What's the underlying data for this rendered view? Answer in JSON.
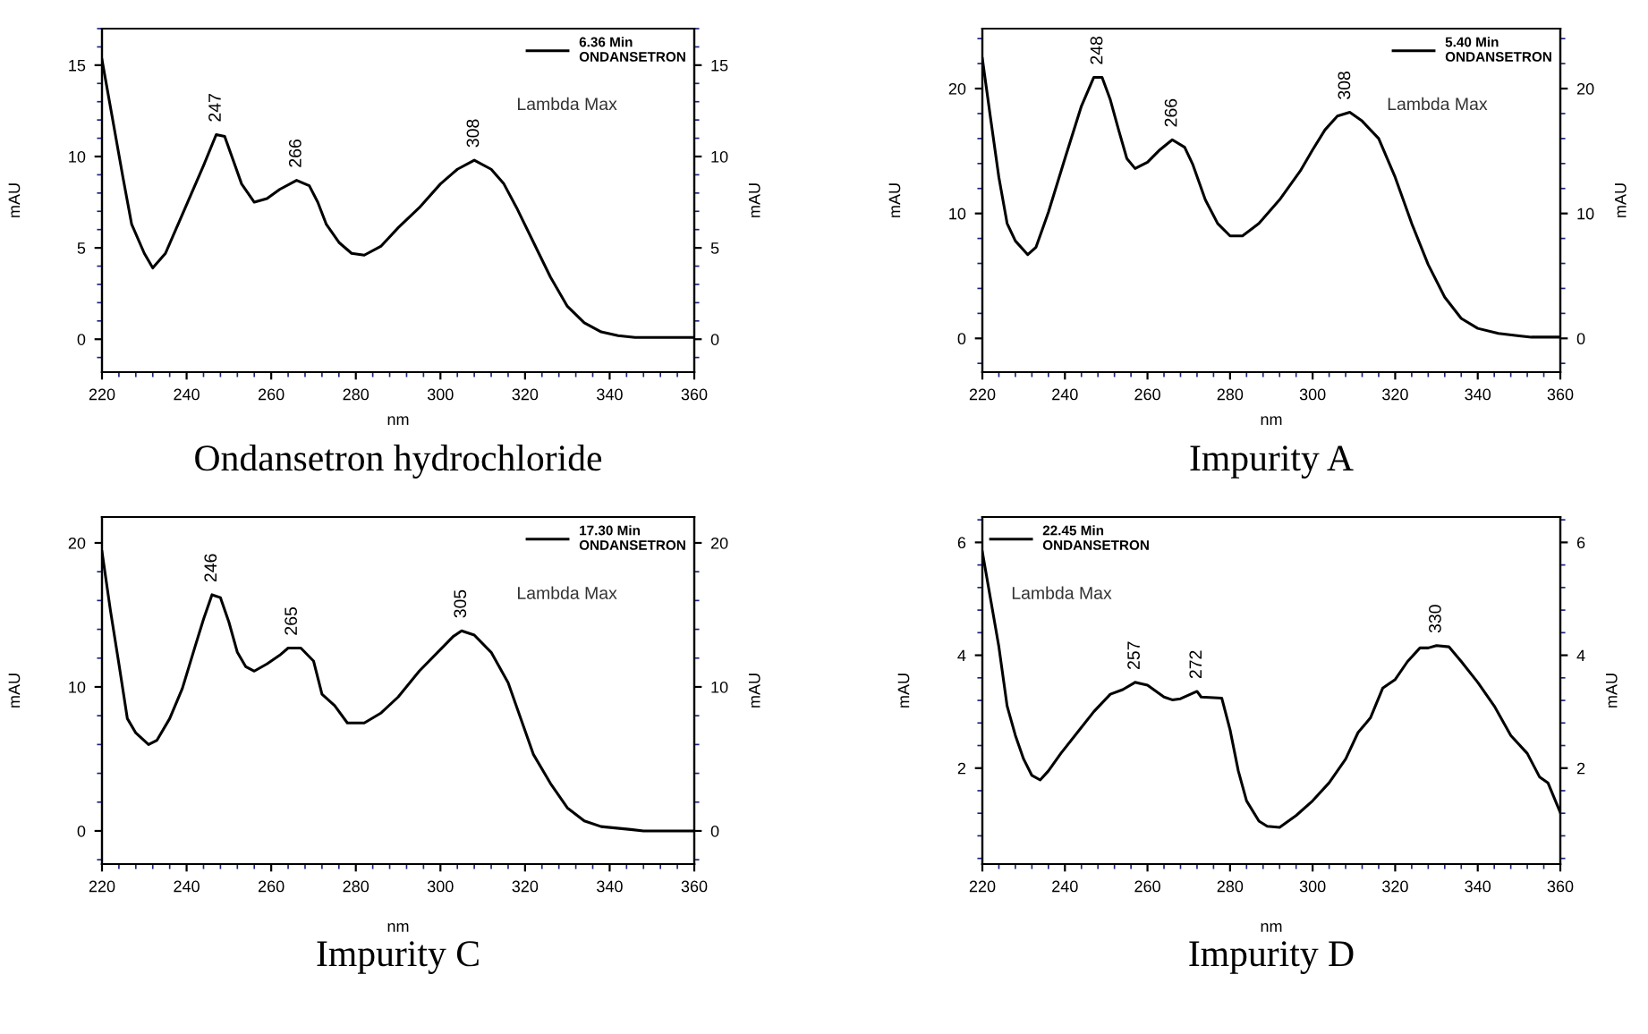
{
  "chart_data": [
    {
      "type": "line",
      "title": "Ondansetron hydrochloride",
      "xlabel": "nm",
      "ylabel": "mAU",
      "y2label": "mAU",
      "xlim": [
        220,
        360
      ],
      "xticks": [
        220,
        240,
        260,
        280,
        300,
        320,
        340,
        360
      ],
      "ylim": [
        -1.8,
        17
      ],
      "yticks": [
        0,
        5,
        10,
        15
      ],
      "y2lim": [
        -1.8,
        17
      ],
      "y2ticks": [
        0,
        5,
        10,
        15
      ],
      "legend": "top right",
      "grid": false,
      "x": [
        220,
        222,
        225,
        227,
        230,
        232,
        235,
        238,
        241,
        244,
        247,
        249,
        251,
        253,
        256,
        259,
        262,
        266,
        269,
        271,
        273,
        276,
        279,
        282,
        286,
        290,
        295,
        300,
        304,
        308,
        312,
        315,
        318,
        322,
        326,
        330,
        334,
        338,
        342,
        346,
        350,
        360
      ],
      "series": [
        {
          "name": "6.36 Min\nONDANSETRON",
          "color": "#000000",
          "values": [
            15.3,
            12.7,
            8.8,
            6.3,
            4.7,
            3.9,
            4.7,
            6.3,
            7.9,
            9.5,
            11.2,
            11.1,
            9.8,
            8.5,
            7.5,
            7.7,
            8.2,
            8.7,
            8.4,
            7.5,
            6.3,
            5.3,
            4.7,
            4.6,
            5.1,
            6.1,
            7.2,
            8.5,
            9.3,
            9.8,
            9.3,
            8.5,
            7.2,
            5.3,
            3.4,
            1.8,
            0.9,
            0.4,
            0.2,
            0.1,
            0.1,
            0.1
          ]
        }
      ],
      "annotations": [
        "Lambda Max",
        {
          "text": "247",
          "x": 247,
          "y": 11.2
        },
        {
          "text": "266",
          "x": 266,
          "y": 8.7
        },
        {
          "text": "308",
          "x": 308,
          "y": 9.8
        }
      ]
    },
    {
      "type": "line",
      "title": "Impurity A",
      "xlabel": "nm",
      "ylabel": "mAU",
      "y2label": "mAU",
      "xlim": [
        220,
        360
      ],
      "xticks": [
        220,
        240,
        260,
        280,
        300,
        320,
        340,
        360
      ],
      "ylim": [
        -2.7,
        24.8
      ],
      "yticks": [
        0,
        10,
        20
      ],
      "y2lim": [
        -2.7,
        24.8
      ],
      "y2ticks": [
        0,
        10,
        20
      ],
      "legend": "top right",
      "grid": false,
      "x": [
        220,
        222,
        224,
        226,
        228,
        231,
        233,
        236,
        240,
        244,
        247,
        249,
        251,
        253,
        255,
        257,
        260,
        263,
        266,
        269,
        271,
        274,
        277,
        280,
        283,
        287,
        292,
        297,
        300,
        303,
        306,
        309,
        312,
        316,
        320,
        324,
        328,
        332,
        336,
        340,
        345,
        350,
        353,
        360
      ],
      "series": [
        {
          "name": "5.40 Min\nONDANSETRON",
          "color": "#000000",
          "values": [
            22.4,
            17.6,
            12.9,
            9.2,
            7.8,
            6.7,
            7.3,
            10.1,
            14.4,
            18.6,
            20.9,
            20.9,
            19.1,
            16.7,
            14.4,
            13.6,
            14.1,
            15.1,
            15.9,
            15.3,
            13.9,
            11.1,
            9.2,
            8.2,
            8.2,
            9.2,
            11.1,
            13.4,
            15.1,
            16.7,
            17.8,
            18.1,
            17.4,
            16.0,
            12.9,
            9.2,
            5.9,
            3.3,
            1.6,
            0.8,
            0.4,
            0.2,
            0.1,
            0.1
          ]
        }
      ],
      "annotations": [
        "Lambda Max",
        {
          "text": "248",
          "x": 248,
          "y": 20.9
        },
        {
          "text": "266",
          "x": 266,
          "y": 15.9
        },
        {
          "text": "308",
          "x": 308,
          "y": 18.1
        }
      ]
    },
    {
      "type": "line",
      "title": "Impurity C",
      "xlabel": "nm",
      "ylabel": "mAU",
      "y2label": "mAU",
      "xlim": [
        220,
        360
      ],
      "xticks": [
        220,
        240,
        260,
        280,
        300,
        320,
        340,
        360
      ],
      "ylim": [
        -2.3,
        21.8
      ],
      "yticks": [
        0,
        10,
        20
      ],
      "y2lim": [
        -2.3,
        21.8
      ],
      "y2ticks": [
        0,
        10,
        20
      ],
      "legend": "top right",
      "grid": false,
      "x": [
        220,
        222,
        224,
        226,
        228,
        231,
        233,
        236,
        239,
        242,
        244,
        246,
        248,
        250,
        252,
        254,
        256,
        259,
        262,
        264,
        267,
        270,
        272,
        275,
        278,
        282,
        286,
        290,
        295,
        300,
        303,
        305,
        308,
        312,
        316,
        319,
        322,
        326,
        330,
        334,
        338,
        345,
        348,
        360
      ],
      "series": [
        {
          "name": "17.30 Min\nONDANSETRON",
          "color": "#000000",
          "values": [
            19.4,
            15.3,
            11.6,
            7.8,
            6.8,
            6.0,
            6.3,
            7.8,
            9.9,
            12.8,
            14.7,
            16.4,
            16.2,
            14.5,
            12.4,
            11.4,
            11.1,
            11.6,
            12.2,
            12.7,
            12.7,
            11.8,
            9.5,
            8.7,
            7.5,
            7.5,
            8.2,
            9.3,
            11.1,
            12.6,
            13.5,
            13.9,
            13.6,
            12.4,
            10.3,
            7.8,
            5.3,
            3.3,
            1.6,
            0.7,
            0.3,
            0.1,
            0.0,
            0.0
          ]
        }
      ],
      "annotations": [
        "Lambda Max",
        {
          "text": "246",
          "x": 246,
          "y": 16.4
        },
        {
          "text": "265",
          "x": 265,
          "y": 12.7
        },
        {
          "text": "305",
          "x": 305,
          "y": 13.9
        }
      ]
    },
    {
      "type": "line",
      "title": "Impurity D",
      "xlabel": "nm",
      "ylabel": "mAU",
      "y2label": "mAU",
      "xlim": [
        220,
        360
      ],
      "xticks": [
        220,
        240,
        260,
        280,
        300,
        320,
        340,
        360
      ],
      "ylim": [
        0.3,
        6.45
      ],
      "yticks": [
        2,
        4,
        6
      ],
      "y2lim": [
        0.3,
        6.45
      ],
      "y2ticks": [
        2,
        4,
        6
      ],
      "legend": "top left",
      "grid": false,
      "x": [
        220,
        222,
        224,
        226,
        228,
        230,
        232,
        234,
        236,
        239,
        243,
        247,
        251,
        254,
        257,
        260,
        264,
        266,
        268,
        272,
        273,
        278,
        280,
        282,
        284,
        287,
        289,
        292,
        296,
        300,
        304,
        308,
        311,
        314,
        317,
        320,
        323,
        326,
        328,
        330,
        333,
        336,
        340,
        344,
        348,
        352,
        355,
        357,
        360
      ],
      "series": [
        {
          "name": "22.45 Min\nONDANSETRON",
          "color": "#000000",
          "values": [
            5.83,
            4.99,
            4.15,
            3.1,
            2.58,
            2.16,
            1.87,
            1.79,
            1.95,
            2.26,
            2.63,
            3.0,
            3.31,
            3.39,
            3.52,
            3.47,
            3.26,
            3.21,
            3.23,
            3.36,
            3.26,
            3.24,
            2.68,
            1.95,
            1.42,
            1.06,
            0.97,
            0.95,
            1.16,
            1.42,
            1.74,
            2.16,
            2.63,
            2.89,
            3.42,
            3.57,
            3.89,
            4.13,
            4.13,
            4.17,
            4.15,
            3.89,
            3.52,
            3.1,
            2.58,
            2.26,
            1.84,
            1.74,
            1.21
          ]
        }
      ],
      "annotations": [
        "Lambda Max",
        {
          "text": "257",
          "x": 257,
          "y": 3.52
        },
        {
          "text": "272",
          "x": 272,
          "y": 3.36
        },
        {
          "text": "330",
          "x": 330,
          "y": 4.17
        }
      ]
    }
  ]
}
